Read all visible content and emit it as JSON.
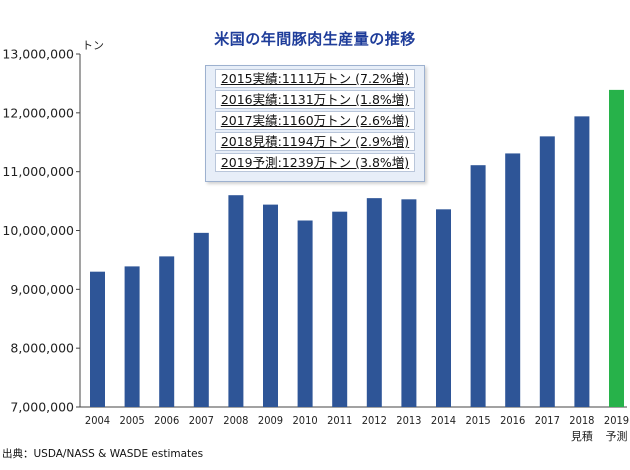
{
  "title": "米国の年間豚肉生産量の推移",
  "source": "出典：USDA/NASS & WASDE estimates",
  "annotations": [
    "2015実績:1111万トン (7.2%増)",
    "2016実績:1131万トン (1.8%増)",
    "2017実績:1160万トン (2.6%増)",
    "2018見積:1194万トン (2.9%増)",
    "2019予測:1239万トン (3.8%増)"
  ],
  "colors": {
    "bar": "#2e5597",
    "highlight": "#27b24a",
    "title": "#1f3d9a"
  },
  "chart_data": {
    "type": "bar",
    "title": "米国の年間豚肉生産量の推移",
    "ylabel": "トン",
    "xlabel": "",
    "ylim": [
      7000000,
      13000000
    ],
    "yticks": [
      7000000,
      8000000,
      9000000,
      10000000,
      11000000,
      12000000,
      13000000
    ],
    "ytick_labels": [
      "7,000,000",
      "8,000,000",
      "9,000,000",
      "10,000,000",
      "11,000,000",
      "12,000,000",
      "13,000,000"
    ],
    "grid": false,
    "categories": [
      "2004",
      "2005",
      "2006",
      "2007",
      "2008",
      "2009",
      "2010",
      "2011",
      "2012",
      "2013",
      "2014",
      "2015",
      "2016",
      "2017",
      "2018",
      "2019"
    ],
    "category_sublabels": [
      "",
      "",
      "",
      "",
      "",
      "",
      "",
      "",
      "",
      "",
      "",
      "",
      "",
      "",
      "見積",
      "予測"
    ],
    "values": [
      9300000,
      9390000,
      9560000,
      9960000,
      10600000,
      10440000,
      10170000,
      10320000,
      10550000,
      10530000,
      10360000,
      11110000,
      11310000,
      11600000,
      11940000,
      12390000
    ],
    "highlight_index": 15
  }
}
